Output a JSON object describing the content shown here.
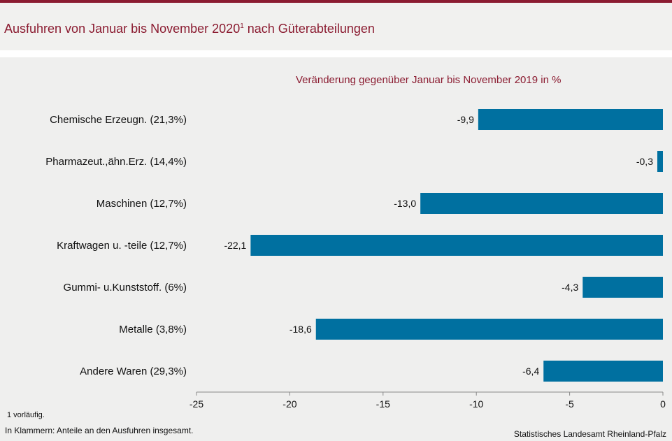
{
  "header": {
    "title": "Ausfuhren von Januar bis November 2020",
    "title_superscript": "1",
    "title_suffix": " nach Güterabteilungen"
  },
  "chart_data": {
    "type": "bar",
    "orientation": "horizontal",
    "subtitle": "Veränderung  gegenüber  Januar bis November 2019 in %",
    "categories": [
      "Chemische Erzeugn. (21,3%)",
      "Pharmazeut.,ähn.Erz. (14,4%)",
      "Maschinen (12,7%)",
      "Kraftwagen u. -teile (12,7%)",
      "Gummi- u.Kunststoff. (6%)",
      "Metalle (3,8%)",
      "Andere Waren (29,3%)"
    ],
    "values": [
      -9.9,
      -0.3,
      -13.0,
      -22.1,
      -4.3,
      -18.6,
      -6.4
    ],
    "value_labels": [
      "-9,9",
      "-0,3",
      "-13,0",
      "-22,1",
      "-4,3",
      "-18,6",
      "-6,4"
    ],
    "xlim": [
      -25,
      0
    ],
    "xticks": [
      -25,
      -20,
      -15,
      -10,
      -5,
      0
    ],
    "xtick_labels": [
      "-25",
      "-20",
      "-15",
      "-10",
      "-5",
      "0"
    ],
    "bar_color": "#0070a0",
    "grid": false
  },
  "footer": {
    "footnote": "1 vorläufig.",
    "note": "In Klammern: Anteile an den Ausfuhren insgesamt.",
    "source": "Statistisches Landesamt Rheinland-Pfalz"
  }
}
